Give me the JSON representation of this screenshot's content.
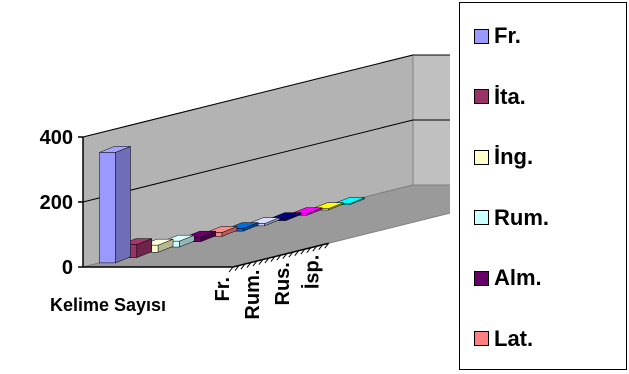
{
  "chart_data": {
    "type": "bar",
    "style": "3d-depth",
    "xlabel": "Kelime Sayısı",
    "ylabel": "",
    "ylim": [
      0,
      400
    ],
    "yticks": [
      0,
      200,
      400
    ],
    "grid": true,
    "legend_position": "right",
    "depth_categories_shown": [
      "Fr.",
      "Rum.",
      "Rus.",
      "İsp."
    ],
    "series": [
      {
        "name": "Fr.",
        "value": 340,
        "color": "#9999ff"
      },
      {
        "name": "İta.",
        "value": 40,
        "color": "#993366"
      },
      {
        "name": "İng.",
        "value": 22,
        "color": "#ffffcc"
      },
      {
        "name": "Rum.",
        "value": 18,
        "color": "#ccffff"
      },
      {
        "name": "Alm.",
        "value": 14,
        "color": "#660066"
      },
      {
        "name": "Lat.",
        "value": 12,
        "color": "#ff8080"
      },
      {
        "name": "",
        "value": 8,
        "color": "#0066cc"
      },
      {
        "name": "",
        "value": 7,
        "color": "#ccccff"
      },
      {
        "name": "",
        "value": 6,
        "color": "#000080"
      },
      {
        "name": "",
        "value": 5,
        "color": "#ff00ff"
      },
      {
        "name": "",
        "value": 4,
        "color": "#ffff00"
      },
      {
        "name": "",
        "value": 3,
        "color": "#00ffff"
      }
    ],
    "legend_visible_count": 6
  }
}
